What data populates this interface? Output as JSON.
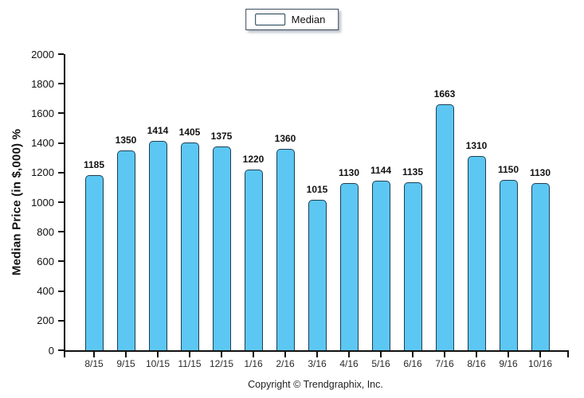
{
  "chart_data": {
    "type": "bar",
    "title": "",
    "categories": [
      "8/15",
      "9/15",
      "10/15",
      "11/15",
      "12/15",
      "1/16",
      "2/16",
      "3/16",
      "4/16",
      "5/16",
      "6/16",
      "7/16",
      "8/16",
      "9/16",
      "10/16"
    ],
    "series": [
      {
        "name": "Median",
        "values": [
          1185,
          1350,
          1414,
          1405,
          1375,
          1220,
          1360,
          1015,
          1130,
          1144,
          1135,
          1663,
          1310,
          1150,
          1130
        ]
      }
    ],
    "xlabel": "",
    "ylabel": "Median Price (in $,000) %",
    "ylim": [
      0,
      2000
    ],
    "yticks": [
      0,
      200,
      400,
      600,
      800,
      1000,
      1200,
      1400,
      1600,
      1800,
      2000
    ],
    "grid": false,
    "legend_position": "top-center",
    "bar_color": "#5cc7f2",
    "bar_border_color": "#1d3e52",
    "axis_color": "#111111"
  },
  "legend": {
    "label": "Median"
  },
  "footer": {
    "copyright": "Copyright © Trendgraphix, Inc."
  }
}
